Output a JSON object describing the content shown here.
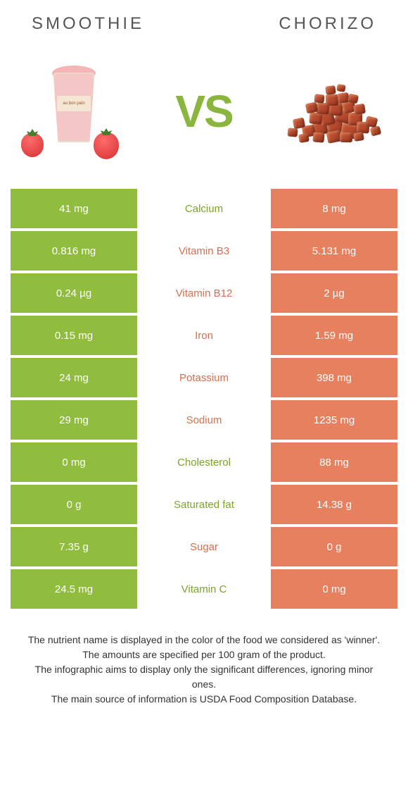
{
  "header": {
    "left_title": "SMOOTHIE",
    "right_title": "CHORIZO"
  },
  "vs_label": "VS",
  "colors": {
    "green": "#91bd3f",
    "orange": "#e6805e",
    "green_text": "#7ba428",
    "orange_text": "#d6704e"
  },
  "rows": [
    {
      "left": "41 mg",
      "label": "Calcium",
      "right": "8 mg",
      "winner": "left"
    },
    {
      "left": "0.816 mg",
      "label": "Vitamin B3",
      "right": "5.131 mg",
      "winner": "right"
    },
    {
      "left": "0.24 µg",
      "label": "Vitamin B12",
      "right": "2 µg",
      "winner": "right"
    },
    {
      "left": "0.15 mg",
      "label": "Iron",
      "right": "1.59 mg",
      "winner": "right"
    },
    {
      "left": "24 mg",
      "label": "Potassium",
      "right": "398 mg",
      "winner": "right"
    },
    {
      "left": "29 mg",
      "label": "Sodium",
      "right": "1235 mg",
      "winner": "right"
    },
    {
      "left": "0 mg",
      "label": "Cholesterol",
      "right": "88 mg",
      "winner": "left"
    },
    {
      "left": "0 g",
      "label": "Saturated fat",
      "right": "14.38 g",
      "winner": "left"
    },
    {
      "left": "7.35 g",
      "label": "Sugar",
      "right": "0 g",
      "winner": "right"
    },
    {
      "left": "24.5 mg",
      "label": "Vitamin C",
      "right": "0 mg",
      "winner": "left"
    }
  ],
  "footer": {
    "line1": "The nutrient name is displayed in the color of the food we considered as 'winner'.",
    "line2": "The amounts are specified per 100 gram of the product.",
    "line3": "The infographic aims to display only the significant differences, ignoring minor ones.",
    "line4": "The main source of information is USDA Food Composition Database."
  }
}
